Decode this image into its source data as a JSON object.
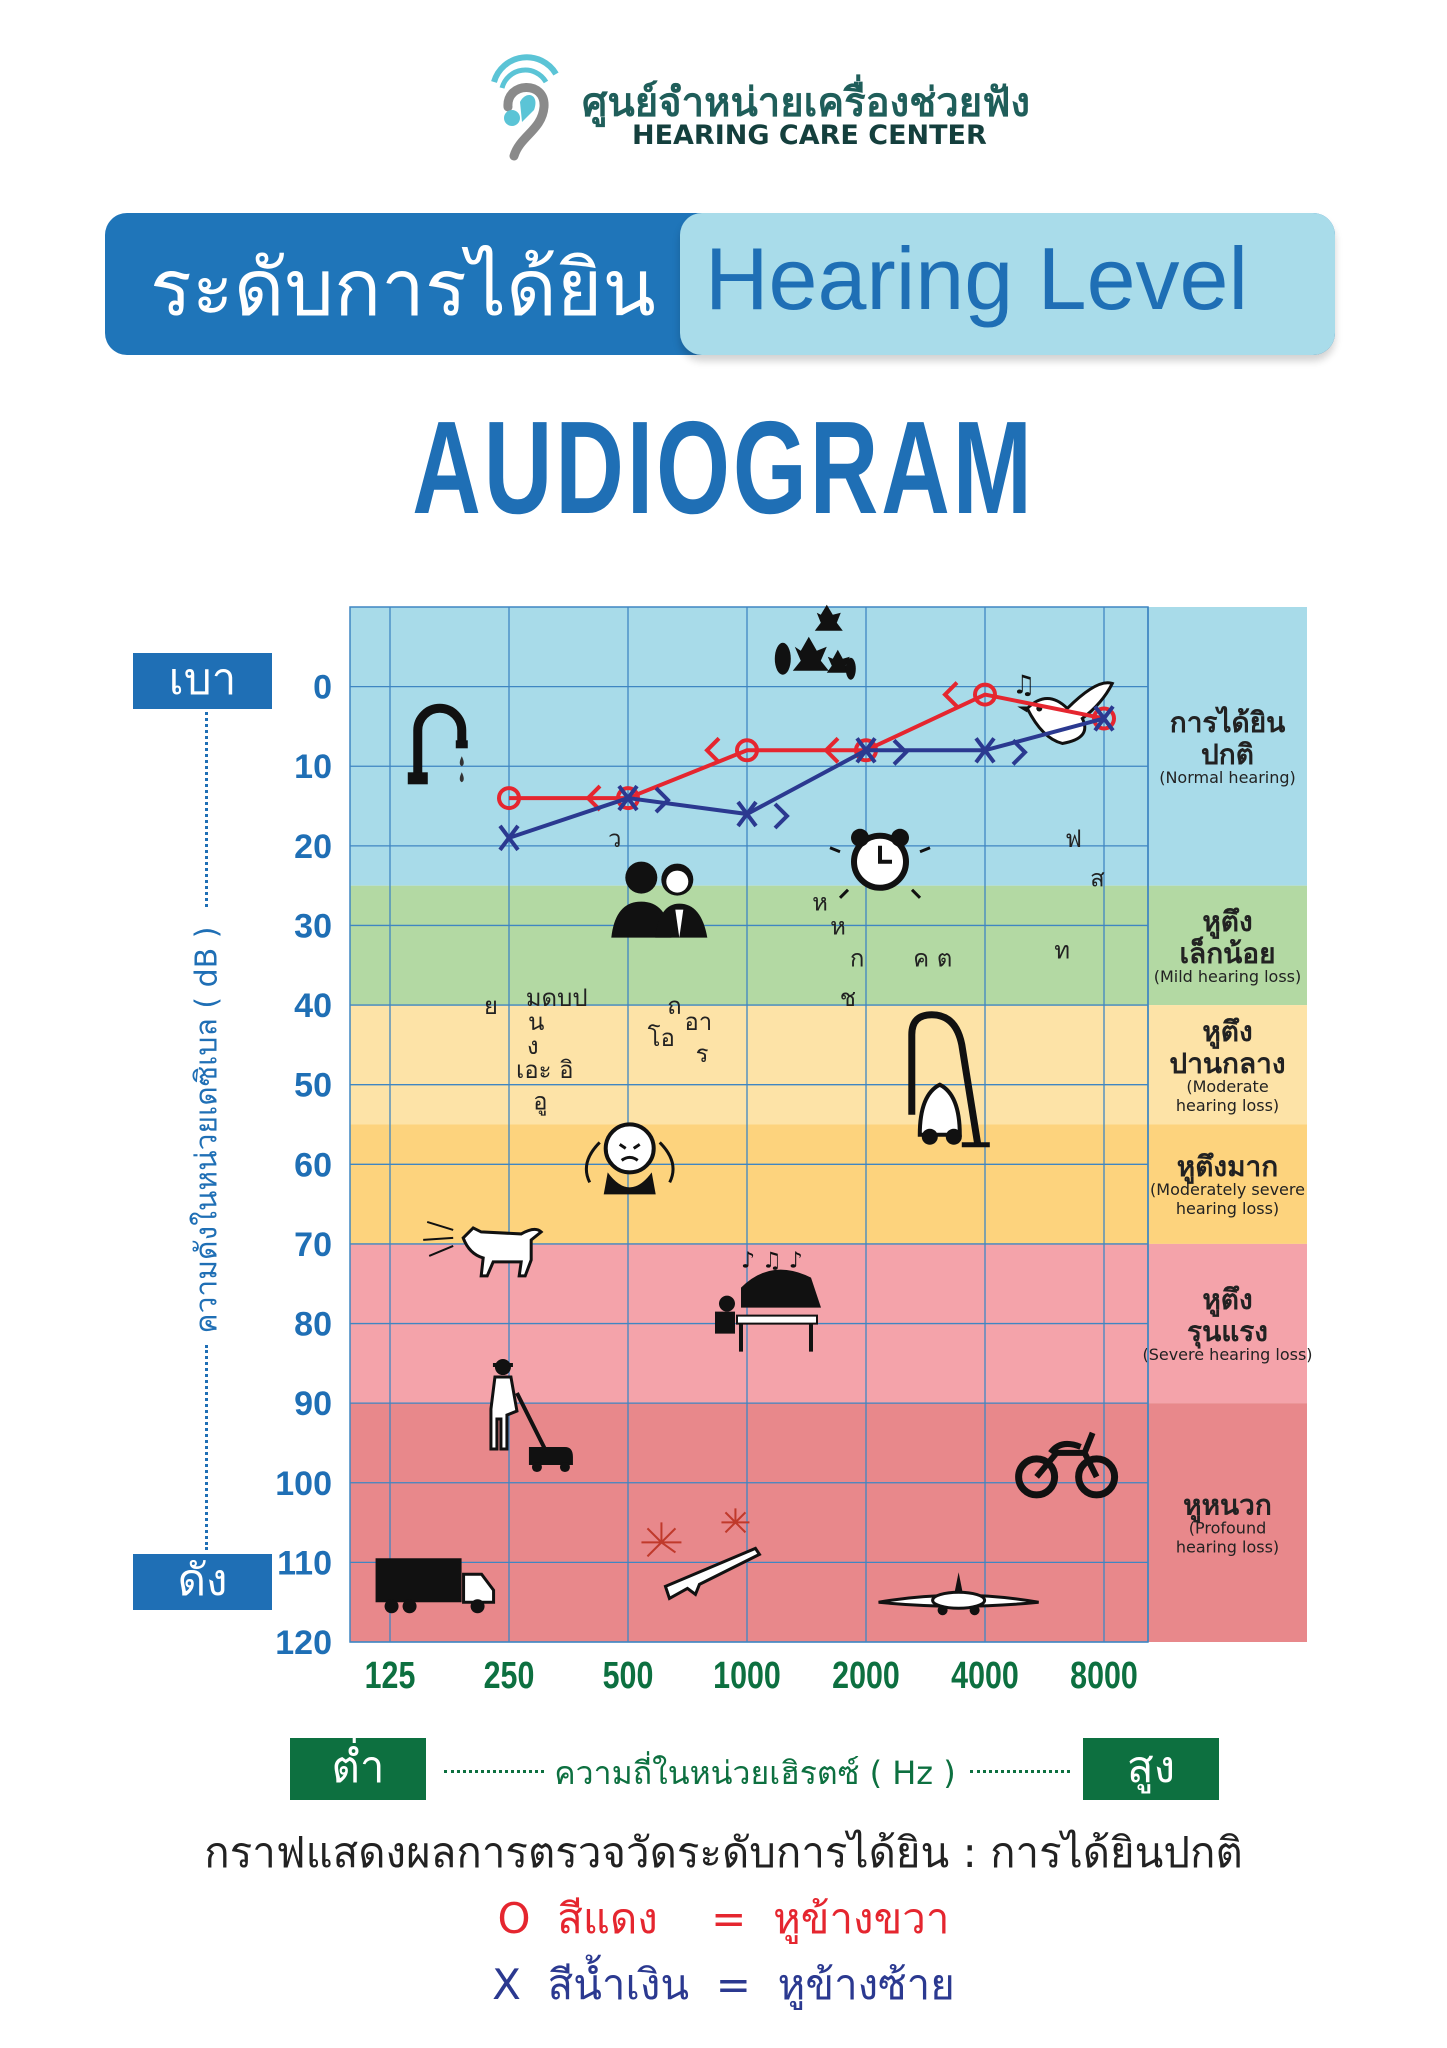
{
  "logo": {
    "thai": "ศูนย์จำหน่ายเครื่องช่วยฟัง",
    "english": "HEARING CARE CENTER",
    "colors": {
      "ring": "#5bc4d6",
      "ear": "#8a8a8a"
    }
  },
  "title": {
    "thai": "ระดับการได้ยิน",
    "english": "Hearing  Level",
    "subtitle": "AUDIOGRAM"
  },
  "y_axis": {
    "top_label": "เบา",
    "bottom_label": "ดัง",
    "title": "ความดังในหน่วยเดซิเบล ( dB )"
  },
  "x_axis": {
    "low_label": "ต่ำ",
    "high_label": "สูง",
    "title": "ความถี่ในหน่วยเฮิรตซ์ ( Hz )"
  },
  "caption": "กราฟแสดงผลการตรวจวัดระดับการได้ยิน  :  การได้ยินปกติ",
  "legend": {
    "right": "O  สีแดง    =  หูข้างขวา",
    "left": "X  สีน้ำเงิน  =  หูข้างซ้าย"
  },
  "chart_data": {
    "type": "line",
    "title": "AUDIOGRAM",
    "xlabel": "ความถี่ในหน่วยเฮิรตซ์ ( Hz )",
    "ylabel": "ความดังในหน่วยเดซิเบล ( dB )",
    "x_scale": "log2",
    "x": [
      125,
      250,
      500,
      1000,
      2000,
      4000,
      8000
    ],
    "x_tick_labels": [
      "125",
      "250",
      "500",
      "1000",
      "2000",
      "4000",
      "8000"
    ],
    "ylim": [
      -10,
      120
    ],
    "y_inverted": true,
    "y_ticks": [
      0,
      10,
      20,
      30,
      40,
      50,
      60,
      70,
      80,
      90,
      100,
      110,
      120
    ],
    "grid": true,
    "series": [
      {
        "name": "หูข้างขวา (Right ear)",
        "marker": "O",
        "color": "#e5262f",
        "x": [
          250,
          500,
          1000,
          2000,
          4000,
          8000
        ],
        "values": [
          14,
          14,
          8,
          8,
          1,
          4
        ]
      },
      {
        "name": "หูข้างซ้าย (Left ear)",
        "marker": "X",
        "color": "#2b3990",
        "x": [
          250,
          500,
          1000,
          2000,
          4000,
          8000
        ],
        "values": [
          19,
          14,
          16,
          8,
          8,
          4
        ]
      }
    ],
    "bands": [
      {
        "from": -10,
        "to": 25,
        "thai": [
          "การได้ยิน",
          "ปกติ"
        ],
        "english": [
          "(Normal hearing)"
        ],
        "color": "#a8dbe9"
      },
      {
        "from": 25,
        "to": 40,
        "thai": [
          "หูตึง",
          "เล็กน้อย"
        ],
        "english": [
          "(Mild hearing loss)"
        ],
        "color": "#b3d9a3"
      },
      {
        "from": 40,
        "to": 55,
        "thai": [
          "หูตึง",
          "ปานกลาง"
        ],
        "english": [
          "(Moderate",
          "hearing loss)"
        ],
        "color": "#fde3a7"
      },
      {
        "from": 55,
        "to": 70,
        "thai": [
          "หูตึงมาก"
        ],
        "english": [
          "(Moderately severe",
          "hearing loss)"
        ],
        "color": "#fdd37d"
      },
      {
        "from": 70,
        "to": 90,
        "thai": [
          "หูตึง",
          "รุนแรง"
        ],
        "english": [
          "(Severe hearing loss)"
        ],
        "color": "#f4a3aa"
      },
      {
        "from": 90,
        "to": 120,
        "thai": [
          "หูหนวก"
        ],
        "english": [
          "(Profound",
          "hearing loss)"
        ],
        "color": "#e8888b"
      }
    ],
    "speech_sounds": [
      {
        "text": "ว",
        "freq": 463,
        "db": 19
      },
      {
        "text": "ฟ",
        "freq": 6700,
        "db": 19
      },
      {
        "text": "ส",
        "freq": 7700,
        "db": 24
      },
      {
        "text": "ห",
        "freq": 1530,
        "db": 27
      },
      {
        "text": "ห",
        "freq": 1700,
        "db": 30
      },
      {
        "text": "ก",
        "freq": 1900,
        "db": 34
      },
      {
        "text": "ค ต",
        "freq": 2950,
        "db": 34
      },
      {
        "text": "ท",
        "freq": 6270,
        "db": 33
      },
      {
        "text": "ช",
        "freq": 1800,
        "db": 39
      },
      {
        "text": "ย",
        "freq": 225,
        "db": 40
      },
      {
        "text": "มดบป",
        "freq": 330,
        "db": 39
      },
      {
        "text": "น",
        "freq": 293,
        "db": 42
      },
      {
        "text": "ง",
        "freq": 287,
        "db": 45
      },
      {
        "text": "เอะ อิ",
        "freq": 308,
        "db": 48
      },
      {
        "text": "อู",
        "freq": 300,
        "db": 52
      },
      {
        "text": "ถ",
        "freq": 655,
        "db": 40
      },
      {
        "text": "โอ",
        "freq": 607,
        "db": 44
      },
      {
        "text": "อา",
        "freq": 753,
        "db": 42
      },
      {
        "text": "ร",
        "freq": 770,
        "db": 46
      }
    ],
    "sound_icons": [
      {
        "icon": "dripping-faucet",
        "freq": 175,
        "db": 8
      },
      {
        "icon": "falling-leaves",
        "freq": 1450,
        "db": -4
      },
      {
        "icon": "singing-bird",
        "freq": 6460,
        "db": 4
      },
      {
        "icon": "alarm-clock",
        "freq": 2170,
        "db": 22
      },
      {
        "icon": "whispering-people",
        "freq": 600,
        "db": 27
      },
      {
        "icon": "vacuum-cleaner",
        "freq": 3110,
        "db": 50
      },
      {
        "icon": "crying-child",
        "freq": 505,
        "db": 58
      },
      {
        "icon": "barking-dog",
        "freq": 228,
        "db": 70
      },
      {
        "icon": "piano",
        "freq": 1150,
        "db": 78
      },
      {
        "icon": "lawn-mower",
        "freq": 268,
        "db": 93
      },
      {
        "icon": "motorcycle",
        "freq": 6360,
        "db": 97
      },
      {
        "icon": "truck",
        "freq": 163,
        "db": 113
      },
      {
        "icon": "gun-fireworks",
        "freq": 785,
        "db": 110
      },
      {
        "icon": "airplane",
        "freq": 3430,
        "db": 114
      }
    ]
  }
}
